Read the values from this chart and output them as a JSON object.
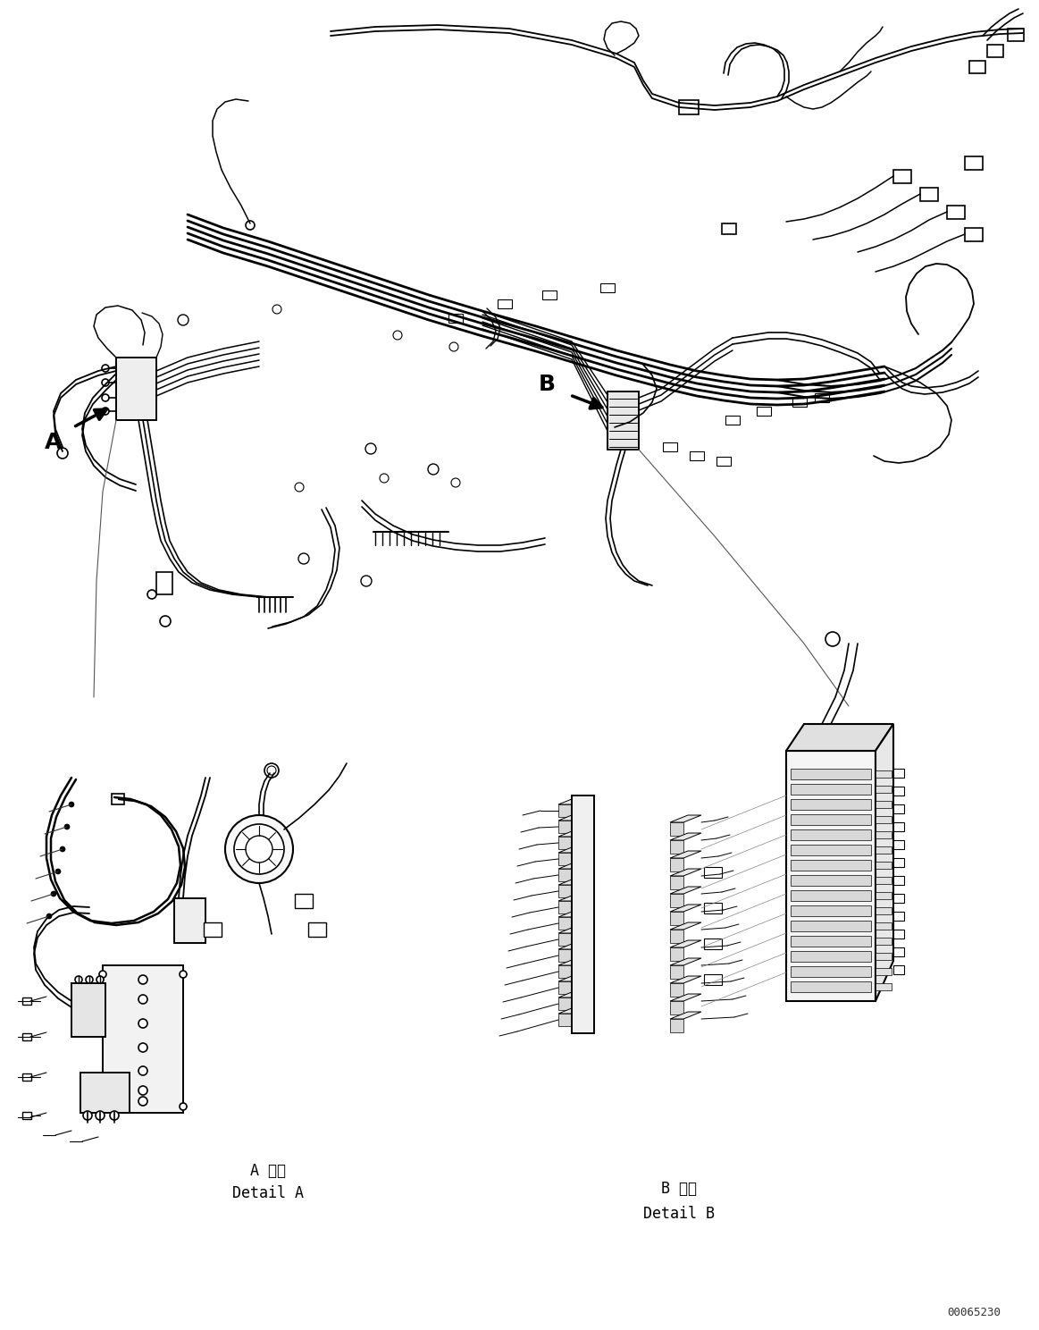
{
  "figure_width": 11.63,
  "figure_height": 14.88,
  "dpi": 100,
  "background_color": "#ffffff",
  "line_color": "#000000",
  "label_A": "A",
  "label_B": "B",
  "detail_A_line1": "A 詳細",
  "detail_A_line2": "Detail A",
  "detail_B_line1": "B 詳細",
  "detail_B_line2": "Detail B",
  "watermark": "00065230"
}
